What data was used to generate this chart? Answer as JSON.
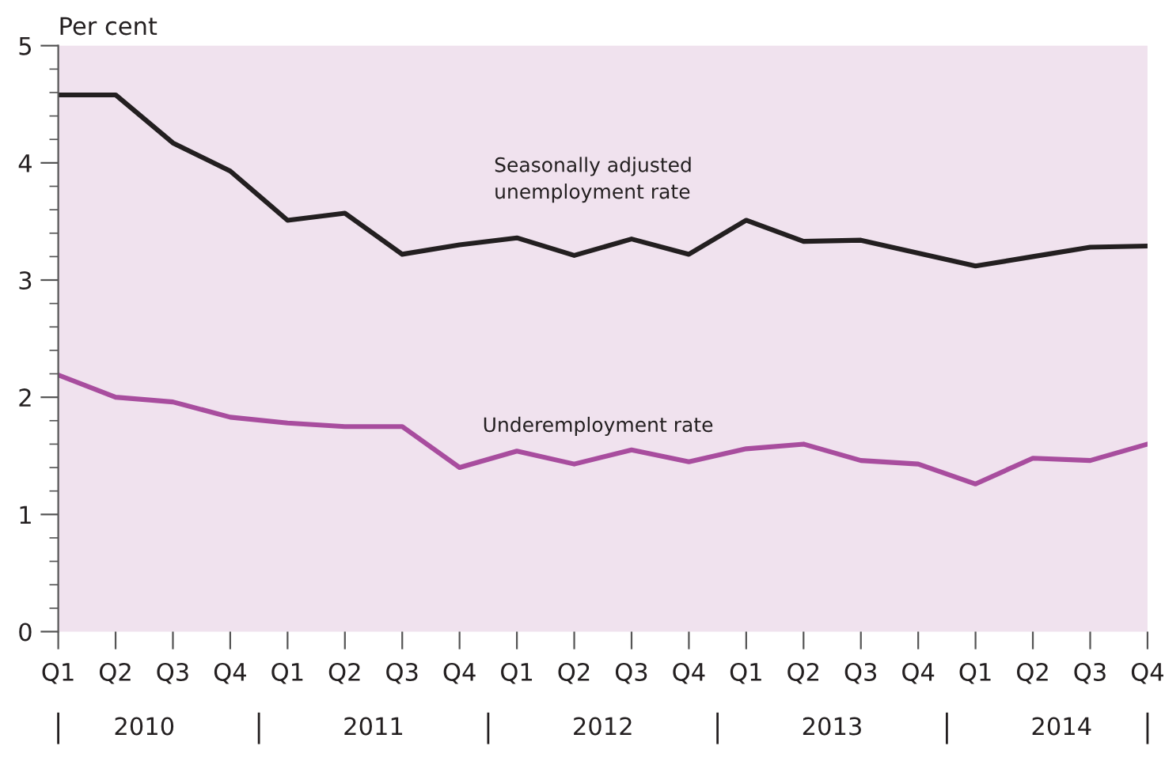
{
  "chart_data": {
    "type": "line",
    "ylabel": "Per cent",
    "categories": [
      "Q1",
      "Q2",
      "Q3",
      "Q4",
      "Q1",
      "Q2",
      "Q3",
      "Q4",
      "Q1",
      "Q2",
      "Q3",
      "Q4",
      "Q1",
      "Q2",
      "Q3",
      "Q4",
      "Q1",
      "Q2",
      "Q3",
      "Q4"
    ],
    "series": [
      {
        "name": "Seasonally adjusted\nunemployment rate",
        "color": "#231f20",
        "values": [
          4.58,
          4.58,
          4.17,
          3.93,
          3.51,
          3.57,
          3.22,
          3.3,
          3.36,
          3.21,
          3.35,
          3.22,
          3.51,
          3.33,
          3.34,
          3.23,
          3.12,
          3.2,
          3.28,
          3.29
        ]
      },
      {
        "name": "Underemployment rate",
        "color": "#a84d9e",
        "values": [
          2.19,
          2.0,
          1.96,
          1.83,
          1.78,
          1.75,
          1.75,
          1.4,
          1.54,
          1.43,
          1.55,
          1.45,
          1.56,
          1.6,
          1.46,
          1.43,
          1.26,
          1.48,
          1.46,
          1.6
        ]
      }
    ],
    "annotations": [
      "2010",
      "2011",
      "2012",
      "2013",
      "2014"
    ],
    "ylim": [
      0,
      5
    ],
    "yticks": [
      0,
      1,
      2,
      3,
      4,
      5
    ],
    "grid": false,
    "legend": false,
    "marker": "none",
    "line_style": "solid"
  }
}
